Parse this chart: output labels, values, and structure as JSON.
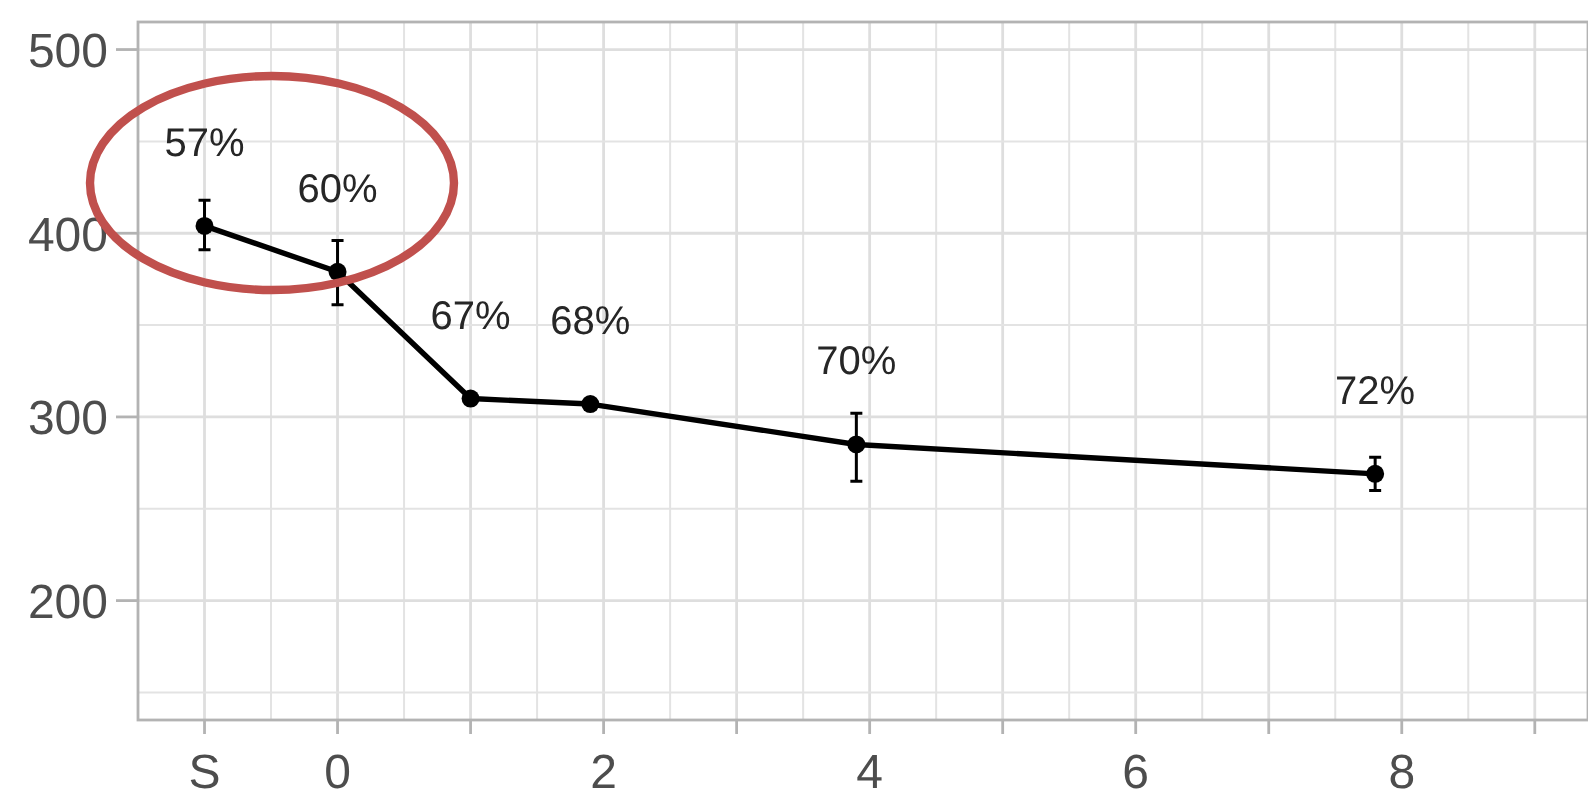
{
  "chart_data": {
    "type": "line",
    "x": [
      -1,
      0,
      1,
      1.9,
      3.9,
      7.8
    ],
    "values": [
      404,
      379,
      310,
      307,
      285,
      269
    ],
    "color": "#000000",
    "errors": [
      [
        391,
        418
      ],
      [
        361,
        396
      ],
      null,
      null,
      [
        265,
        302
      ],
      [
        260,
        278
      ]
    ],
    "annotations": [
      {
        "text": "57%",
        "x": -1,
        "y": 404
      },
      {
        "text": "60%",
        "x": 0,
        "y": 379
      },
      {
        "text": "67%",
        "x": 1,
        "y": 310
      },
      {
        "text": "68%",
        "x": 1.9,
        "y": 307
      },
      {
        "text": "70%",
        "x": 3.9,
        "y": 285
      },
      {
        "text": "72%",
        "x": 7.8,
        "y": 269
      }
    ],
    "xlim": [
      -1.5,
      9.4
    ],
    "xticks": [
      {
        "value": -1,
        "label": "S"
      },
      0,
      {
        "value": 1,
        "label": null
      },
      2,
      {
        "value": 3,
        "label": null
      },
      4,
      {
        "value": 5,
        "label": null
      },
      6,
      {
        "value": 7,
        "label": null
      },
      8,
      {
        "value": 9,
        "label": null
      }
    ],
    "ylim": [
      135,
      515
    ],
    "yticks": [
      200,
      300,
      400,
      500
    ],
    "grid": true,
    "marker": "circle",
    "line_style": "solid"
  }
}
